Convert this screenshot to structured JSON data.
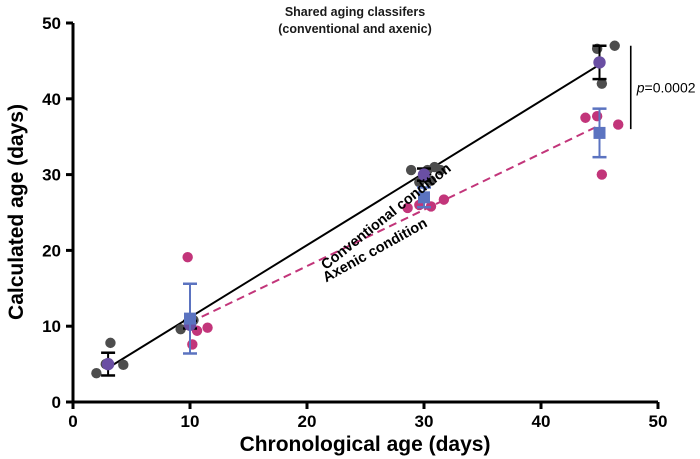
{
  "chart_data": {
    "type": "scatter",
    "title_lines": [
      "Shared aging classifers",
      "(conventional and axenic)"
    ],
    "xlabel": "Chronological age (days)",
    "ylabel": "Calculated age (days)",
    "xlim": [
      0,
      50
    ],
    "ylim": [
      0,
      50
    ],
    "xticks": [
      "0",
      "10",
      "20",
      "30",
      "40",
      "50"
    ],
    "yticks": [
      "0",
      "10",
      "20",
      "30",
      "40",
      "50"
    ],
    "series": [
      {
        "name": "Conventional condition",
        "color": "#000000",
        "point_color": "#4d4d4d",
        "mean_color": "#6a4fa3",
        "fit": {
          "x": [
            3,
            45
          ],
          "y": [
            4.5,
            44.5
          ],
          "style": "solid"
        },
        "points": [
          {
            "x": 2.0,
            "y": 3.8
          },
          {
            "x": 2.8,
            "y": 5.0
          },
          {
            "x": 3.2,
            "y": 7.8
          },
          {
            "x": 4.3,
            "y": 4.9
          },
          {
            "x": 9.2,
            "y": 9.6
          },
          {
            "x": 9.9,
            "y": 10.3
          },
          {
            "x": 10.3,
            "y": 10.8
          },
          {
            "x": 28.9,
            "y": 30.6
          },
          {
            "x": 29.6,
            "y": 29.0
          },
          {
            "x": 30.3,
            "y": 30.6
          },
          {
            "x": 30.6,
            "y": 29.2
          },
          {
            "x": 30.9,
            "y": 31.0
          },
          {
            "x": 31.4,
            "y": 30.6
          },
          {
            "x": 44.8,
            "y": 46.6
          },
          {
            "x": 45.2,
            "y": 42.0
          },
          {
            "x": 46.3,
            "y": 47.0
          }
        ],
        "means": [
          {
            "x": 3,
            "y": 5.0,
            "err": 1.5
          },
          {
            "x": 10,
            "y": 10.2,
            "err": 0.5
          },
          {
            "x": 30,
            "y": 30.0,
            "err": 0.8
          },
          {
            "x": 45,
            "y": 44.8,
            "err": 2.2
          }
        ]
      },
      {
        "name": "Axenic condition",
        "color": "#c2357a",
        "point_color": "#c2357a",
        "mean_color": "#5b73c0",
        "fit": {
          "x": [
            10,
            45
          ],
          "y": [
            10.5,
            36.5
          ],
          "style": "dashed"
        },
        "points": [
          {
            "x": 9.8,
            "y": 19.1
          },
          {
            "x": 10.2,
            "y": 7.6
          },
          {
            "x": 10.6,
            "y": 9.4
          },
          {
            "x": 11.5,
            "y": 9.8
          },
          {
            "x": 28.6,
            "y": 25.6
          },
          {
            "x": 29.6,
            "y": 26.0
          },
          {
            "x": 30.6,
            "y": 25.8
          },
          {
            "x": 31.7,
            "y": 26.7
          },
          {
            "x": 43.8,
            "y": 37.5
          },
          {
            "x": 44.8,
            "y": 37.7
          },
          {
            "x": 45.2,
            "y": 30.0
          },
          {
            "x": 46.6,
            "y": 36.6
          }
        ],
        "means": [
          {
            "x": 10,
            "y": 11.0,
            "err": 4.6
          },
          {
            "x": 30,
            "y": 27.0,
            "err": 1.3
          },
          {
            "x": 45,
            "y": 35.5,
            "err": 3.2
          }
        ]
      }
    ],
    "annotations": [
      {
        "text": "Conventional condition",
        "x": 27,
        "y": 24,
        "angle_deg": 38.5
      },
      {
        "text": "Axenic condition",
        "x": 26,
        "y": 19.5,
        "angle_deg": 29
      }
    ],
    "significance": {
      "label": "p",
      "value": "=0.0002",
      "x": 47.5,
      "y_range": [
        36,
        47
      ]
    }
  }
}
